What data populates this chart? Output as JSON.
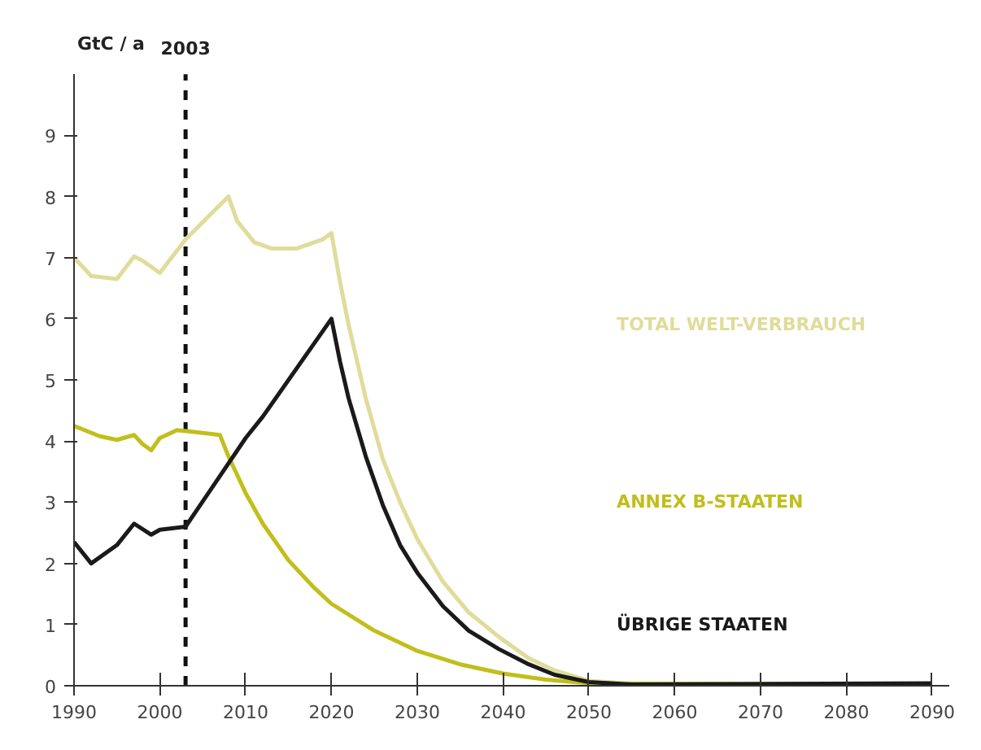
{
  "chart_data": {
    "type": "line",
    "ylabel": "GtC / a",
    "xlim": [
      1990,
      2092
    ],
    "ylim": [
      0,
      10
    ],
    "xticks": [
      1990,
      2000,
      2010,
      2020,
      2030,
      2040,
      2050,
      2060,
      2070,
      2080,
      2090
    ],
    "yticks": [
      0,
      1,
      2,
      3,
      4,
      5,
      6,
      7,
      8,
      9
    ],
    "grid": false,
    "marker": "none",
    "line_style": "solid",
    "ref_lines": [
      {
        "axis": "x",
        "value": 2003,
        "label": "2003",
        "color": "#111111",
        "line_style": "dashed"
      }
    ],
    "series": [
      {
        "name": "TOTAL WELT-VERBRAUCH",
        "color": "#e0dc9a",
        "x": [
          1990,
          1992,
          1995,
          1997,
          1998,
          2000,
          2003,
          2008,
          2009,
          2011,
          2013,
          2016,
          2019,
          2020,
          2021,
          2022,
          2024,
          2026,
          2028,
          2030,
          2033,
          2036,
          2039.5,
          2043,
          2046,
          2050,
          2055
        ],
        "values": [
          7.0,
          6.7,
          6.65,
          7.02,
          6.95,
          6.75,
          7.3,
          8.0,
          7.6,
          7.25,
          7.15,
          7.15,
          7.3,
          7.4,
          6.6,
          5.9,
          4.7,
          3.7,
          3.0,
          2.4,
          1.7,
          1.2,
          0.8,
          0.45,
          0.25,
          0.08,
          0.03
        ]
      },
      {
        "name": "ANNEX B-STAATEN",
        "color": "#c2be1c",
        "x": [
          1990,
          1993,
          1995,
          1997,
          1998,
          1999,
          2000,
          2002,
          2004,
          2007,
          2008,
          2010,
          2012,
          2015,
          2018,
          2020,
          2025,
          2030,
          2035,
          2040,
          2045,
          2050,
          2090
        ],
        "values": [
          4.25,
          4.08,
          4.02,
          4.1,
          3.95,
          3.85,
          4.05,
          4.18,
          4.15,
          4.1,
          3.75,
          3.15,
          2.65,
          2.05,
          1.6,
          1.34,
          0.9,
          0.57,
          0.35,
          0.2,
          0.1,
          0.04,
          0.02
        ]
      },
      {
        "name": "ÜBRIGE STAATEN",
        "color": "#1a1a1a",
        "x": [
          1990,
          1992,
          1995,
          1997,
          1999,
          2000,
          2003,
          2010,
          2012,
          2020,
          2021,
          2022,
          2024,
          2026,
          2028,
          2030,
          2033,
          2036,
          2039.5,
          2043,
          2046,
          2050,
          2055,
          2090
        ],
        "values": [
          2.35,
          2.0,
          2.3,
          2.65,
          2.47,
          2.55,
          2.6,
          4.05,
          4.4,
          6.0,
          5.3,
          4.7,
          3.75,
          2.95,
          2.3,
          1.85,
          1.3,
          0.9,
          0.6,
          0.35,
          0.18,
          0.06,
          0.02,
          0.04
        ]
      }
    ]
  }
}
